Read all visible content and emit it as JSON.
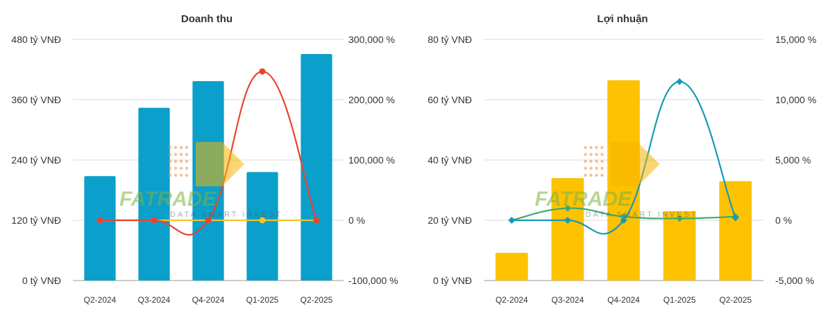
{
  "watermark": {
    "text": "FATRADE",
    "subtext": "DATA SMART INVEST"
  },
  "chart_data": [
    {
      "type": "bar",
      "title": "Doanh thu",
      "categories": [
        "Q2-2024",
        "Q3-2024",
        "Q4-2024",
        "Q1-2025",
        "Q2-2025"
      ],
      "bar_color": "#0b9fcc",
      "y_left": {
        "ticks": [
          0,
          120,
          240,
          360,
          480
        ],
        "labels": [
          "0 tỷ VNĐ",
          "120 tỷ VNĐ",
          "240 tỷ VNĐ",
          "360 tỷ VNĐ",
          "480 tỷ VNĐ"
        ],
        "range": [
          0,
          480
        ]
      },
      "y_right": {
        "ticks": [
          -100000,
          0,
          100000,
          200000,
          300000
        ],
        "labels": [
          "-100,000 %",
          "0 %",
          "100,000 %",
          "200,000 %",
          "300,000 %"
        ],
        "range": [
          -100000,
          300000
        ]
      },
      "series": [
        {
          "name": "bar",
          "kind": "bar",
          "axis": "left",
          "values": [
            208,
            344,
            397,
            216,
            451
          ]
        },
        {
          "name": "line-1",
          "kind": "line",
          "axis": "right",
          "color": "#e8432e",
          "values": [
            0,
            0,
            0,
            247000,
            0
          ]
        },
        {
          "name": "line-2",
          "kind": "line",
          "axis": "right",
          "color": "#f7c325",
          "values": [
            0,
            0,
            0,
            0,
            0
          ]
        }
      ]
    },
    {
      "type": "bar",
      "title": "Lợi nhuận",
      "categories": [
        "Q2-2024",
        "Q3-2024",
        "Q4-2024",
        "Q1-2025",
        "Q2-2025"
      ],
      "bar_color": "#fdc201",
      "y_left": {
        "ticks": [
          0,
          20,
          40,
          60,
          80
        ],
        "labels": [
          "0 tỷ VNĐ",
          "20 tỷ VNĐ",
          "40 tỷ VNĐ",
          "60 tỷ VNĐ",
          "80 tỷ VNĐ"
        ],
        "range": [
          0,
          80
        ]
      },
      "y_right": {
        "ticks": [
          -5000,
          0,
          5000,
          10000,
          15000
        ],
        "labels": [
          "-5,000 %",
          "0 %",
          "5,000 %",
          "10,000 %",
          "15,000 %"
        ],
        "range": [
          -5000,
          15000
        ]
      },
      "series": [
        {
          "name": "bar",
          "kind": "bar",
          "axis": "left",
          "values": [
            9.2,
            34,
            66.5,
            23,
            33
          ]
        },
        {
          "name": "line-1",
          "kind": "line",
          "axis": "right",
          "color": "#1699b7",
          "values": [
            0,
            0,
            0,
            11500,
            200
          ]
        },
        {
          "name": "line-2",
          "kind": "line",
          "axis": "right",
          "color": "#3daa6f",
          "values": [
            0,
            1000,
            300,
            150,
            300
          ]
        }
      ]
    }
  ]
}
